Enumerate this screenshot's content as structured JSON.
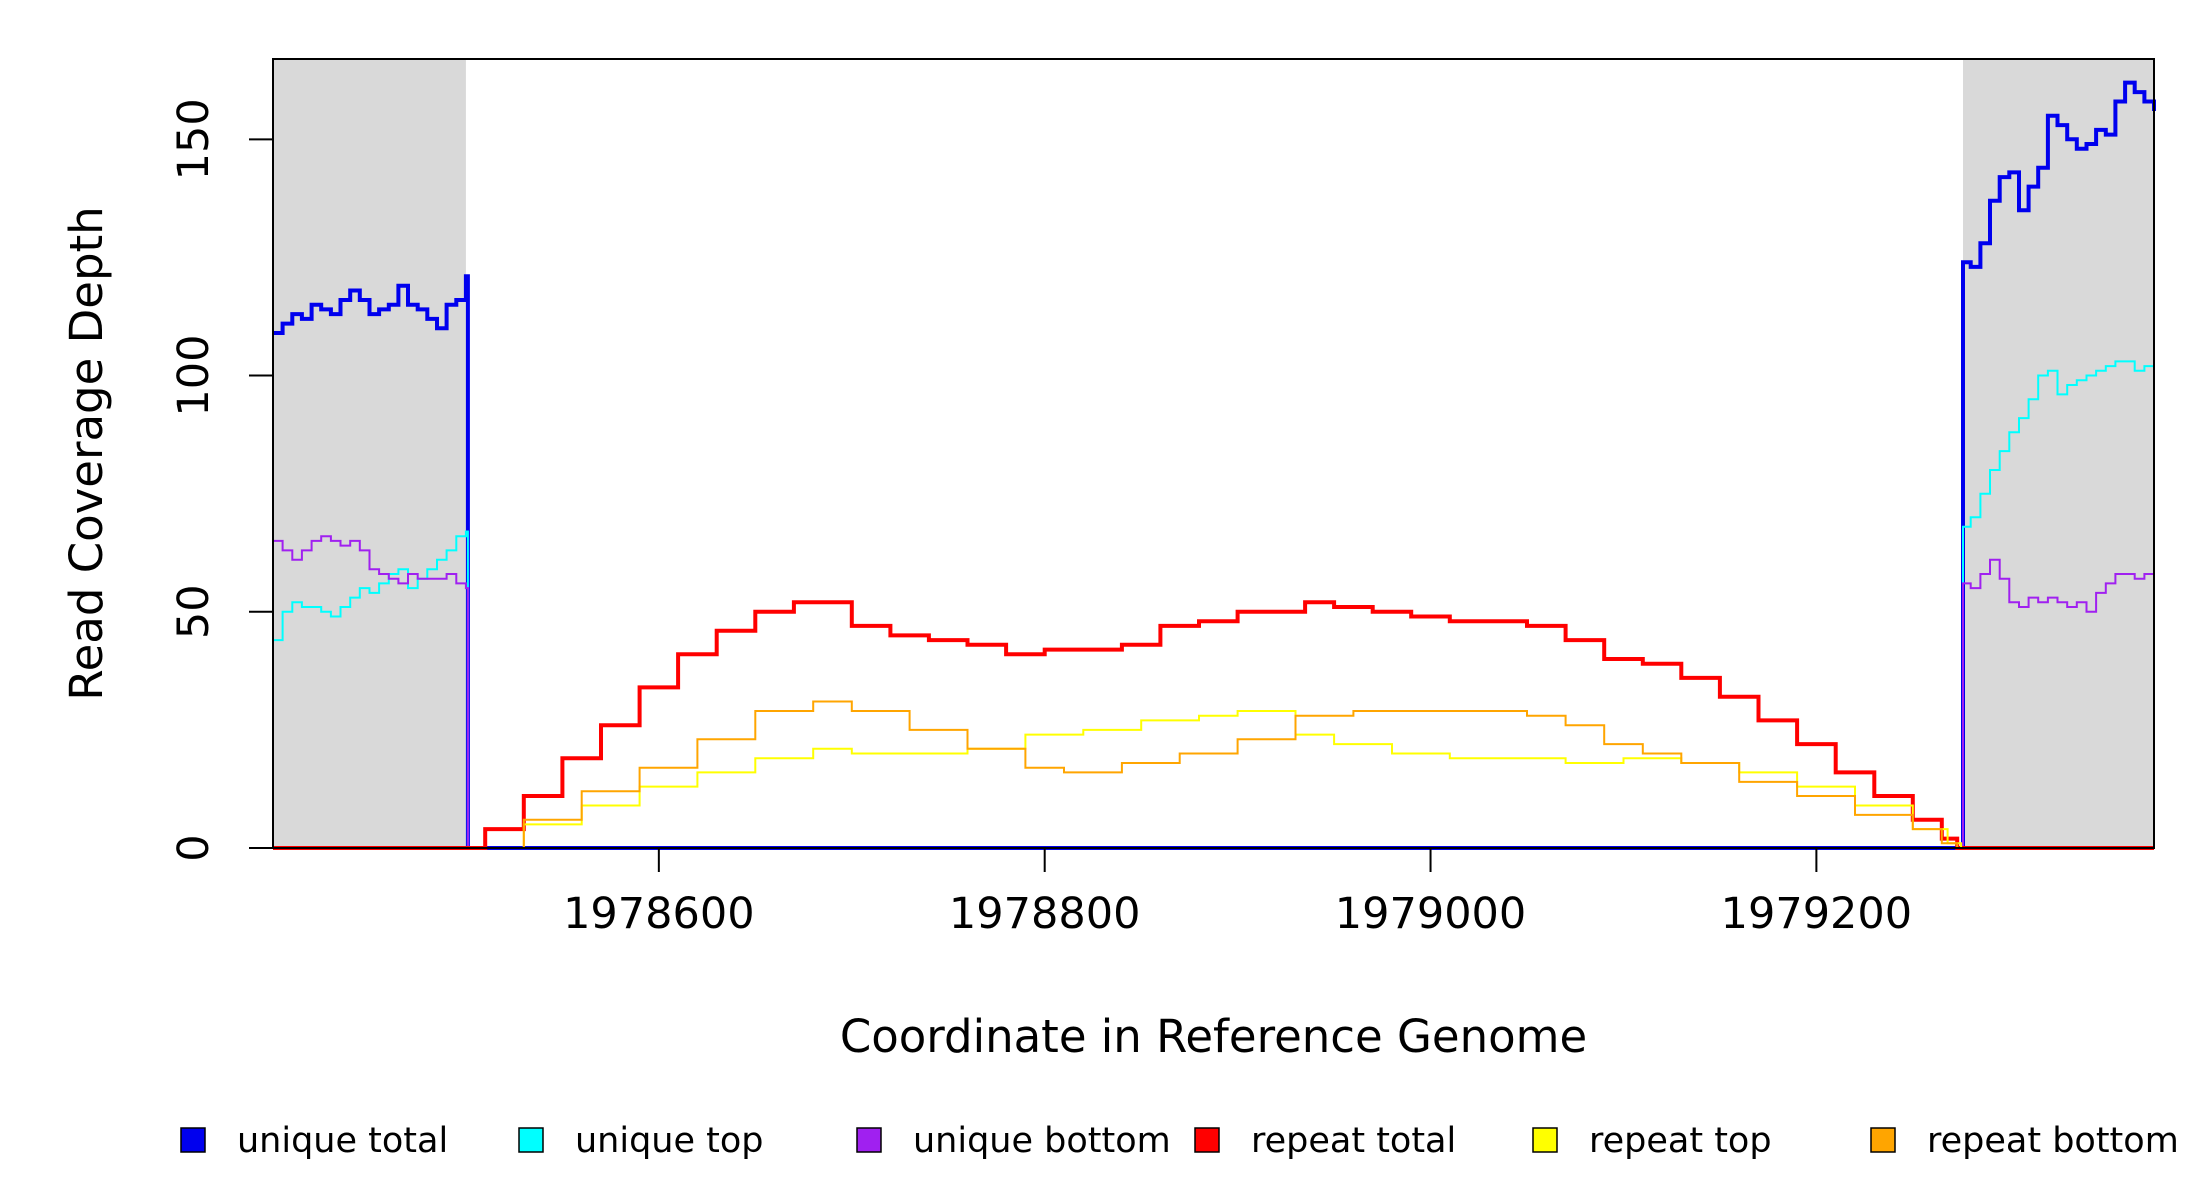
{
  "chart_data": {
    "type": "line",
    "title": "",
    "xlabel": "Coordinate in Reference Genome",
    "ylabel": "Read Coverage Depth",
    "xlim": [
      1978400,
      1979375
    ],
    "ylim": [
      0,
      167
    ],
    "x_ticks": [
      1978600,
      1978800,
      1979000,
      1979200
    ],
    "x_tick_labels": [
      "1978600",
      "1978800",
      "1979000",
      "1979200"
    ],
    "y_ticks": [
      0,
      50,
      100,
      150
    ],
    "y_tick_labels": [
      "0",
      "50",
      "100",
      "150"
    ],
    "grid": false,
    "legend_position": "bottom",
    "shaded_regions": [
      {
        "x": [
          1978400,
          1978500
        ],
        "color": "#d9d9d9"
      },
      {
        "x": [
          1979276,
          1979375
        ],
        "color": "#d9d9d9"
      }
    ],
    "series": [
      {
        "name": "unique total",
        "color": "#0000ee",
        "width": 4,
        "points": [
          [
            1978400,
            109
          ],
          [
            1978405,
            111
          ],
          [
            1978410,
            113
          ],
          [
            1978415,
            112
          ],
          [
            1978420,
            115
          ],
          [
            1978425,
            114
          ],
          [
            1978430,
            113
          ],
          [
            1978435,
            116
          ],
          [
            1978440,
            118
          ],
          [
            1978445,
            116
          ],
          [
            1978450,
            113
          ],
          [
            1978455,
            114
          ],
          [
            1978460,
            115
          ],
          [
            1978465,
            119
          ],
          [
            1978470,
            115
          ],
          [
            1978475,
            114
          ],
          [
            1978480,
            112
          ],
          [
            1978485,
            110
          ],
          [
            1978490,
            115
          ],
          [
            1978495,
            116
          ],
          [
            1978500,
            121
          ],
          [
            1978501,
            121
          ],
          [
            1978501,
            0
          ],
          [
            1979276,
            0
          ],
          [
            1979276,
            124
          ],
          [
            1979280,
            123
          ],
          [
            1979285,
            128
          ],
          [
            1979290,
            137
          ],
          [
            1979295,
            142
          ],
          [
            1979300,
            143
          ],
          [
            1979305,
            135
          ],
          [
            1979310,
            140
          ],
          [
            1979315,
            144
          ],
          [
            1979320,
            155
          ],
          [
            1979325,
            153
          ],
          [
            1979330,
            150
          ],
          [
            1979335,
            148
          ],
          [
            1979340,
            149
          ],
          [
            1979345,
            152
          ],
          [
            1979350,
            151
          ],
          [
            1979355,
            158
          ],
          [
            1979360,
            162
          ],
          [
            1979365,
            160
          ],
          [
            1979370,
            158
          ],
          [
            1979375,
            156
          ]
        ]
      },
      {
        "name": "unique top",
        "color": "#00ffff",
        "width": 2,
        "points": [
          [
            1978400,
            44
          ],
          [
            1978405,
            50
          ],
          [
            1978410,
            52
          ],
          [
            1978415,
            51
          ],
          [
            1978420,
            51
          ],
          [
            1978425,
            50
          ],
          [
            1978430,
            49
          ],
          [
            1978435,
            51
          ],
          [
            1978440,
            53
          ],
          [
            1978445,
            55
          ],
          [
            1978450,
            54
          ],
          [
            1978455,
            56
          ],
          [
            1978460,
            58
          ],
          [
            1978465,
            59
          ],
          [
            1978470,
            55
          ],
          [
            1978475,
            57
          ],
          [
            1978480,
            59
          ],
          [
            1978485,
            61
          ],
          [
            1978490,
            63
          ],
          [
            1978495,
            66
          ],
          [
            1978500,
            67
          ],
          [
            1978501,
            67
          ],
          [
            1978501,
            0
          ],
          [
            1979276,
            0
          ],
          [
            1979276,
            68
          ],
          [
            1979280,
            70
          ],
          [
            1979285,
            75
          ],
          [
            1979290,
            80
          ],
          [
            1979295,
            84
          ],
          [
            1979300,
            88
          ],
          [
            1979305,
            91
          ],
          [
            1979310,
            95
          ],
          [
            1979315,
            100
          ],
          [
            1979320,
            101
          ],
          [
            1979325,
            96
          ],
          [
            1979330,
            98
          ],
          [
            1979335,
            99
          ],
          [
            1979340,
            100
          ],
          [
            1979345,
            101
          ],
          [
            1979350,
            102
          ],
          [
            1979355,
            103
          ],
          [
            1979360,
            103
          ],
          [
            1979365,
            101
          ],
          [
            1979370,
            102
          ],
          [
            1979375,
            98
          ]
        ]
      },
      {
        "name": "unique bottom",
        "color": "#a020f0",
        "width": 2,
        "points": [
          [
            1978400,
            65
          ],
          [
            1978405,
            63
          ],
          [
            1978410,
            61
          ],
          [
            1978415,
            63
          ],
          [
            1978420,
            65
          ],
          [
            1978425,
            66
          ],
          [
            1978430,
            65
          ],
          [
            1978435,
            64
          ],
          [
            1978440,
            65
          ],
          [
            1978445,
            63
          ],
          [
            1978450,
            59
          ],
          [
            1978455,
            58
          ],
          [
            1978460,
            57
          ],
          [
            1978465,
            56
          ],
          [
            1978470,
            58
          ],
          [
            1978475,
            57
          ],
          [
            1978480,
            57
          ],
          [
            1978485,
            57
          ],
          [
            1978490,
            58
          ],
          [
            1978495,
            56
          ],
          [
            1978500,
            55
          ],
          [
            1978501,
            55
          ],
          [
            1978501,
            0
          ],
          [
            1979276,
            0
          ],
          [
            1979276,
            56
          ],
          [
            1979280,
            55
          ],
          [
            1979285,
            58
          ],
          [
            1979290,
            61
          ],
          [
            1979295,
            57
          ],
          [
            1979300,
            52
          ],
          [
            1979305,
            51
          ],
          [
            1979310,
            53
          ],
          [
            1979315,
            52
          ],
          [
            1979320,
            53
          ],
          [
            1979325,
            52
          ],
          [
            1979330,
            51
          ],
          [
            1979335,
            52
          ],
          [
            1979340,
            50
          ],
          [
            1979345,
            54
          ],
          [
            1979350,
            56
          ],
          [
            1979355,
            58
          ],
          [
            1979360,
            58
          ],
          [
            1979365,
            57
          ],
          [
            1979370,
            58
          ],
          [
            1979375,
            58
          ]
        ]
      },
      {
        "name": "repeat total",
        "color": "#ff0000",
        "width": 4,
        "points": [
          [
            1978400,
            0
          ],
          [
            1978500,
            0
          ],
          [
            1978510,
            4
          ],
          [
            1978530,
            11
          ],
          [
            1978550,
            19
          ],
          [
            1978570,
            26
          ],
          [
            1978590,
            34
          ],
          [
            1978610,
            41
          ],
          [
            1978630,
            46
          ],
          [
            1978650,
            50
          ],
          [
            1978670,
            52
          ],
          [
            1978685,
            52
          ],
          [
            1978700,
            47
          ],
          [
            1978720,
            45
          ],
          [
            1978740,
            44
          ],
          [
            1978760,
            43
          ],
          [
            1978780,
            41
          ],
          [
            1978800,
            42
          ],
          [
            1978820,
            42
          ],
          [
            1978840,
            43
          ],
          [
            1978860,
            47
          ],
          [
            1978880,
            48
          ],
          [
            1978900,
            50
          ],
          [
            1978920,
            50
          ],
          [
            1978935,
            52
          ],
          [
            1978950,
            51
          ],
          [
            1978970,
            50
          ],
          [
            1978990,
            49
          ],
          [
            1979010,
            48
          ],
          [
            1979030,
            48
          ],
          [
            1979050,
            47
          ],
          [
            1979070,
            44
          ],
          [
            1979090,
            40
          ],
          [
            1979110,
            39
          ],
          [
            1979130,
            36
          ],
          [
            1979150,
            32
          ],
          [
            1979170,
            27
          ],
          [
            1979190,
            22
          ],
          [
            1979210,
            16
          ],
          [
            1979230,
            11
          ],
          [
            1979250,
            6
          ],
          [
            1979265,
            2
          ],
          [
            1979273,
            0
          ],
          [
            1979375,
            0
          ]
        ]
      },
      {
        "name": "repeat top",
        "color": "#ffff00",
        "width": 2,
        "points": [
          [
            1978400,
            0
          ],
          [
            1978500,
            0
          ],
          [
            1978530,
            5
          ],
          [
            1978560,
            9
          ],
          [
            1978590,
            13
          ],
          [
            1978620,
            16
          ],
          [
            1978650,
            19
          ],
          [
            1978680,
            21
          ],
          [
            1978700,
            20
          ],
          [
            1978730,
            20
          ],
          [
            1978760,
            21
          ],
          [
            1978790,
            24
          ],
          [
            1978820,
            25
          ],
          [
            1978850,
            27
          ],
          [
            1978880,
            28
          ],
          [
            1978900,
            29
          ],
          [
            1978930,
            24
          ],
          [
            1978950,
            22
          ],
          [
            1978980,
            20
          ],
          [
            1979010,
            19
          ],
          [
            1979040,
            19
          ],
          [
            1979070,
            18
          ],
          [
            1979100,
            19
          ],
          [
            1979130,
            18
          ],
          [
            1979160,
            16
          ],
          [
            1979190,
            13
          ],
          [
            1979220,
            9
          ],
          [
            1979250,
            4
          ],
          [
            1979268,
            1
          ],
          [
            1979275,
            0
          ],
          [
            1979375,
            0
          ]
        ]
      },
      {
        "name": "repeat bottom",
        "color": "#ffa500",
        "width": 2,
        "points": [
          [
            1978400,
            0
          ],
          [
            1978500,
            0
          ],
          [
            1978530,
            6
          ],
          [
            1978560,
            12
          ],
          [
            1978590,
            17
          ],
          [
            1978620,
            23
          ],
          [
            1978650,
            29
          ],
          [
            1978680,
            31
          ],
          [
            1978700,
            29
          ],
          [
            1978730,
            25
          ],
          [
            1978760,
            21
          ],
          [
            1978790,
            17
          ],
          [
            1978810,
            16
          ],
          [
            1978840,
            18
          ],
          [
            1978870,
            20
          ],
          [
            1978900,
            23
          ],
          [
            1978930,
            28
          ],
          [
            1978960,
            29
          ],
          [
            1978990,
            29
          ],
          [
            1979020,
            29
          ],
          [
            1979050,
            28
          ],
          [
            1979070,
            26
          ],
          [
            1979090,
            22
          ],
          [
            1979110,
            20
          ],
          [
            1979130,
            18
          ],
          [
            1979160,
            14
          ],
          [
            1979190,
            11
          ],
          [
            1979220,
            7
          ],
          [
            1979250,
            4
          ],
          [
            1979265,
            1
          ],
          [
            1979273,
            0
          ],
          [
            1979375,
            0
          ]
        ]
      }
    ],
    "legend": [
      {
        "label": "unique total",
        "color": "#0000ee"
      },
      {
        "label": "unique top",
        "color": "#00ffff"
      },
      {
        "label": "unique bottom",
        "color": "#a020f0"
      },
      {
        "label": "repeat total",
        "color": "#ff0000"
      },
      {
        "label": "repeat top",
        "color": "#ffff00"
      },
      {
        "label": "repeat bottom",
        "color": "#ffa500"
      }
    ]
  }
}
